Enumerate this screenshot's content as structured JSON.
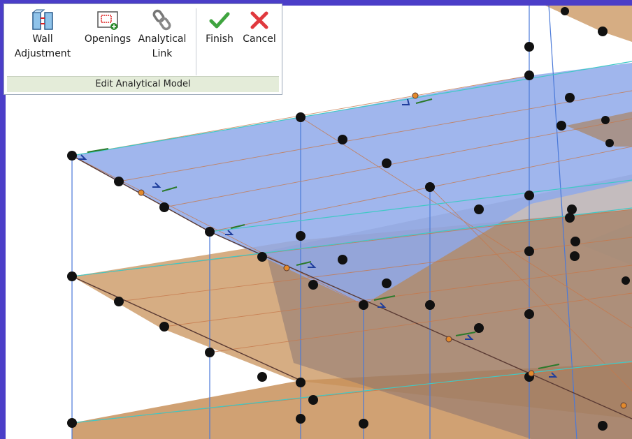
{
  "ribbon": {
    "panel_title": "Edit Analytical Model",
    "tools": [
      {
        "id": "wall-adjustment",
        "label": "Wall\nAdjustment",
        "icon": "wall-adjustment-icon"
      },
      {
        "id": "openings",
        "label": "Openings",
        "icon": "openings-icon"
      },
      {
        "id": "analytical-link",
        "label": "Analytical\nLink",
        "icon": "analytical-link-icon"
      },
      {
        "id": "finish",
        "label": "Finish",
        "icon": "checkmark-icon"
      },
      {
        "id": "cancel",
        "label": "Cancel",
        "icon": "x-cancel-icon"
      }
    ]
  },
  "viewport": {
    "background": "#ffffff",
    "border_color": "#4b3ec8",
    "top_floor_color": "#8fa9ea",
    "floor_color": "#c8915a",
    "node_color": "#111111",
    "release_node_color": "#e38a2c"
  }
}
